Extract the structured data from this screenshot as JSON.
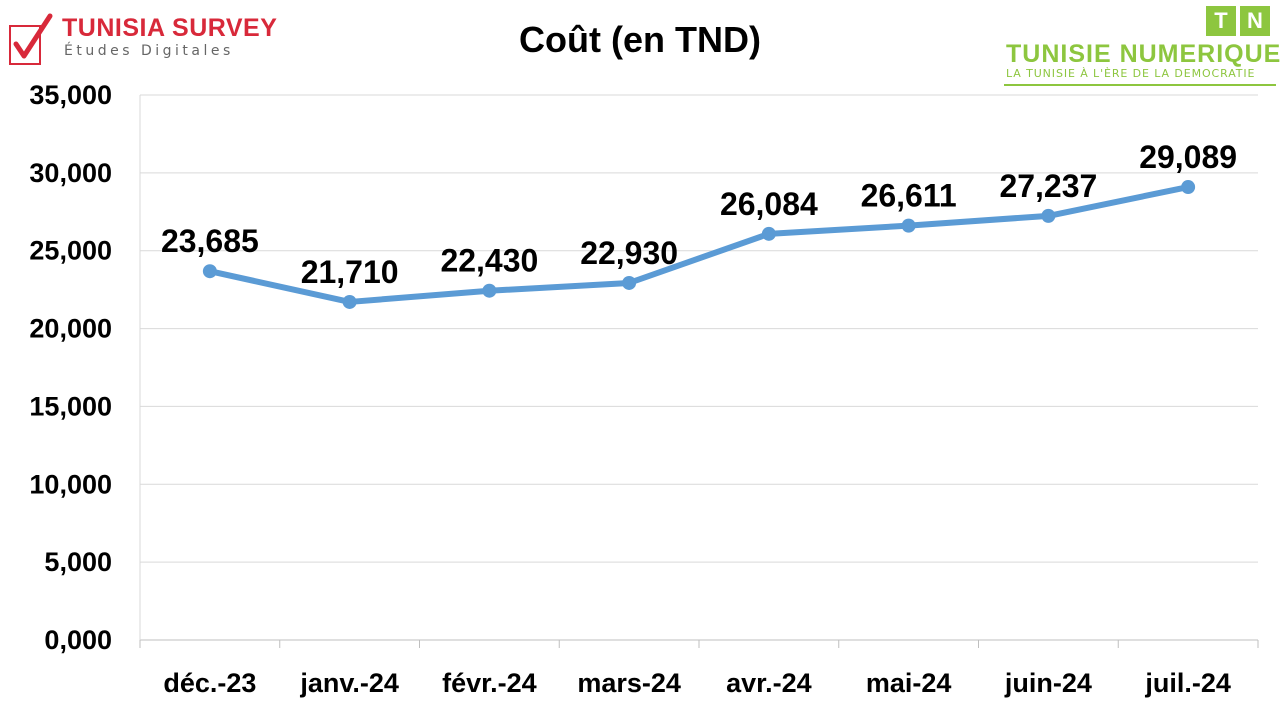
{
  "logos": {
    "left": {
      "brand": "TUNISIA SURVEY",
      "subtitle": "Études Digitales",
      "icon": "checkmark-icon"
    },
    "right": {
      "letters": [
        "T",
        "N"
      ],
      "name": "TUNISIE NUMERIQUE",
      "tagline": "LA TUNISIE À L'ÈRE DE LA DEMOCRATIE",
      "color": "#8dc63f"
    }
  },
  "chart_data": {
    "type": "line",
    "title": "Coût (en TND)",
    "xlabel": "",
    "ylabel": "",
    "categories": [
      "déc.-23",
      "janv.-24",
      "févr.-24",
      "mars-24",
      "avr.-24",
      "mai-24",
      "juin-24",
      "juil.-24"
    ],
    "series": [
      {
        "values": [
          23.685,
          21.71,
          22.43,
          22.93,
          26.084,
          26.611,
          27.237,
          29.089
        ],
        "labels": [
          "23,685",
          "21,710",
          "22,430",
          "22,930",
          "26,084",
          "26,611",
          "27,237",
          "29,089"
        ],
        "color": "#5b9bd5"
      }
    ],
    "ylim": [
      0,
      35
    ],
    "yticks": [
      0,
      5,
      10,
      15,
      20,
      25,
      30,
      35
    ],
    "ytick_labels": [
      "0,000",
      "5,000",
      "10,000",
      "15,000",
      "20,000",
      "25,000",
      "30,000",
      "35,000"
    ],
    "grid": true,
    "legend": "none"
  }
}
